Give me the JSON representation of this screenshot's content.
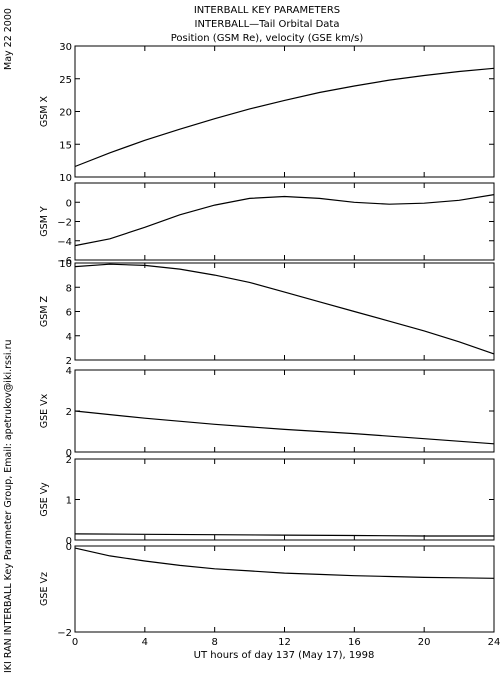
{
  "header": {
    "line1": "INTERBALL KEY PARAMETERS",
    "line2": "INTERBALL—Tail Orbital Data",
    "line3": "Position (GSM Re), velocity (GSE km/s)"
  },
  "side": {
    "date": "May 22 2000",
    "credit": "IKI RAN INTERBALL Key Parameter Group, Email: apetrukov@iki.rssi.ru"
  },
  "chart_data": {
    "type": "line",
    "xlabel": "UT hours of day 137 (May 17), 1998",
    "xlim": [
      0,
      24
    ],
    "xticks": [
      0,
      4,
      8,
      12,
      16,
      20,
      24
    ],
    "panels": [
      {
        "ylabel": "GSM X",
        "ylim": [
          10,
          30
        ],
        "yticks": [
          10,
          15,
          20,
          25,
          30
        ],
        "x": [
          0,
          2,
          4,
          6,
          8,
          10,
          12,
          14,
          16,
          18,
          20,
          22,
          24
        ],
        "y": [
          11.6,
          13.7,
          15.6,
          17.3,
          18.9,
          20.4,
          21.7,
          22.9,
          23.9,
          24.8,
          25.5,
          26.1,
          26.6
        ]
      },
      {
        "ylabel": "GSM Y",
        "ylim": [
          -6,
          2
        ],
        "yticks": [
          -6,
          -4,
          -2,
          0
        ],
        "x": [
          0,
          2,
          4,
          6,
          8,
          10,
          12,
          14,
          16,
          18,
          20,
          22,
          24
        ],
        "y": [
          -4.5,
          -3.8,
          -2.6,
          -1.3,
          -0.3,
          0.4,
          0.6,
          0.4,
          0.0,
          -0.2,
          -0.1,
          0.2,
          0.8
        ]
      },
      {
        "ylabel": "GSM Z",
        "ylim": [
          2,
          10
        ],
        "yticks": [
          2,
          4,
          6,
          8,
          10
        ],
        "x": [
          0,
          2,
          4,
          6,
          8,
          10,
          12,
          14,
          16,
          18,
          20,
          22,
          24
        ],
        "y": [
          9.7,
          9.9,
          9.8,
          9.5,
          9.0,
          8.4,
          7.6,
          6.8,
          6.0,
          5.2,
          4.4,
          3.5,
          2.5
        ]
      },
      {
        "ylabel": "GSE Vx",
        "ylim": [
          0,
          4
        ],
        "yticks": [
          0,
          2,
          4
        ],
        "x": [
          0,
          4,
          8,
          12,
          16,
          20,
          24
        ],
        "y": [
          2.0,
          1.65,
          1.35,
          1.1,
          0.9,
          0.65,
          0.4
        ]
      },
      {
        "ylabel": "GSE Vy",
        "ylim": [
          0,
          2
        ],
        "yticks": [
          0,
          1,
          2
        ],
        "x": [
          0,
          4,
          8,
          12,
          16,
          20,
          24
        ],
        "y": [
          0.15,
          0.14,
          0.13,
          0.12,
          0.11,
          0.1,
          0.1
        ]
      },
      {
        "ylabel": "GSE Vz",
        "ylim": [
          -2,
          0
        ],
        "yticks": [
          -2,
          0
        ],
        "x": [
          0,
          2,
          4,
          6,
          8,
          10,
          12,
          14,
          16,
          18,
          20,
          22,
          24
        ],
        "y": [
          -0.05,
          -0.23,
          -0.35,
          -0.45,
          -0.53,
          -0.58,
          -0.63,
          -0.66,
          -0.69,
          -0.71,
          -0.73,
          -0.74,
          -0.75
        ]
      }
    ]
  }
}
